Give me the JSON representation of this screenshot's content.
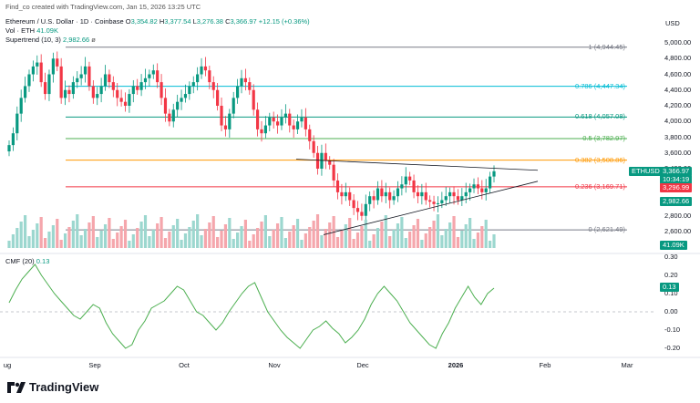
{
  "header": {
    "watermark": "Find_co created with TradingView.com, Jan 15, 2026 13:25 UTC",
    "symbol_title": "Ethereum / U.S. Dollar · 1D · Coinbase",
    "o_label": "O",
    "o_value": "3,354.82",
    "h_label": "H",
    "h_value": "3,377.54",
    "l_label": "L",
    "l_value": "3,276.38",
    "c_label": "C",
    "c_value": "3,366.97",
    "change": "+12.15 (+0.36%)",
    "vol_label": "Vol · ETH",
    "vol_value": "41.09K",
    "supertrend_label": "Supertrend (10, 3)",
    "supertrend_value": "2,982.66",
    "currency": "USD"
  },
  "cmf": {
    "label": "CMF (20)",
    "value": "0.13"
  },
  "price_axis": [
    "5,000.00",
    "4,800.00",
    "4,600.00",
    "4,400.00",
    "4,200.00",
    "4,000.00",
    "3,800.00",
    "3,600.00",
    "3,400.00",
    "2,800.00",
    "2,600.00"
  ],
  "cmf_axis": [
    "0.30",
    "0.20",
    "0.10",
    "0.00",
    "-0.10",
    "-0.20"
  ],
  "x_axis": [
    "ug",
    "Sep",
    "Oct",
    "Nov",
    "Dec",
    "2026",
    "Feb",
    "Mar"
  ],
  "fib_levels": [
    {
      "label": "1 (4,944.45)",
      "color": "#787b86",
      "price": 4944.45
    },
    {
      "label": "0.786 (4,447.34)",
      "color": "#00bcd4",
      "price": 4447.34
    },
    {
      "label": "0.618 (4,057.08)",
      "color": "#089981",
      "price": 4057.08
    },
    {
      "label": "0.5 (3,782.97)",
      "color": "#4caf50",
      "price": 3782.97
    },
    {
      "label": "0.382 (3,508.86)",
      "color": "#ff9800",
      "price": 3508.86
    },
    {
      "label": "0.236 (3,169.71)",
      "color": "#f23645",
      "price": 3169.71
    },
    {
      "label": "0 (2,621.49)",
      "color": "#787b86",
      "price": 2621.49
    }
  ],
  "tags": {
    "symbol": "ETHUSD",
    "price": "3,366.97",
    "countdown": "10:34:19",
    "level_red": "3,296.99",
    "supertrend": "2,982.66",
    "volume": "41.09K",
    "cmf": "0.13"
  },
  "colors": {
    "up": "#089981",
    "down": "#f23645",
    "vol_up": "#9cd7cf",
    "vol_down": "#f5a6ac",
    "cmf": "#4caf50"
  },
  "branding": "TradingView",
  "chart_data": {
    "type": "candlestick",
    "title": "Ethereum / U.S. Dollar · 1D · Coinbase",
    "ylim": [
      2400,
      5100
    ],
    "ohlc_last": {
      "open": 3354.82,
      "high": 3377.54,
      "low": 3276.38,
      "close": 3366.97
    },
    "fibonacci": [
      4944.45,
      4447.34,
      4057.08,
      3782.97,
      3508.86,
      3169.71,
      2621.49
    ],
    "closes": [
      3700,
      3850,
      4100,
      4300,
      4450,
      4600,
      4700,
      4750,
      4500,
      4350,
      4600,
      4800,
      4700,
      4300,
      4400,
      4350,
      4500,
      4550,
      4600,
      4700,
      4450,
      4300,
      4350,
      4450,
      4600,
      4500,
      4400,
      4300,
      4250,
      4200,
      4350,
      4450,
      4400,
      4500,
      4550,
      4600,
      4650,
      4500,
      4300,
      4100,
      4000,
      4150,
      4250,
      4300,
      4350,
      4450,
      4500,
      4600,
      4700,
      4650,
      4500,
      4400,
      4200,
      3950,
      3900,
      4100,
      4300,
      4450,
      4550,
      4500,
      4400,
      4150,
      3900,
      3850,
      3950,
      4050,
      4000,
      3950,
      4050,
      4100,
      3950,
      3900,
      4000,
      4050,
      3900,
      3750,
      3600,
      3400,
      3600,
      3500,
      3450,
      3250,
      3100,
      3050,
      3100,
      3000,
      2900,
      2850,
      2800,
      2950,
      3050,
      3000,
      3150,
      3050,
      3100,
      3000,
      3050,
      3150,
      3200,
      3300,
      3250,
      3100,
      3050,
      3100,
      3000,
      2980,
      2950,
      2960,
      3000,
      3050,
      3100,
      3050,
      3000,
      3050,
      3100,
      3150,
      3200,
      3150,
      3100,
      3150,
      3300,
      3366.97
    ],
    "supertrend": [
      2982.66
    ],
    "cmf_last": 0.13
  }
}
